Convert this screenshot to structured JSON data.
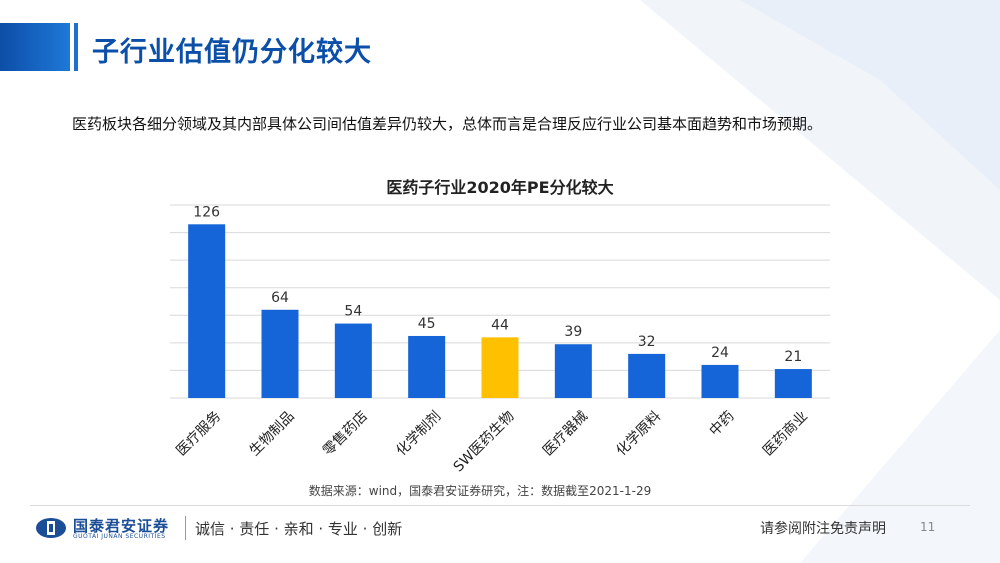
{
  "header": {
    "title": "子行业估值仍分化较大",
    "subtitle": "医药板块各细分领域及其内部具体公司间估值差异仍较大，总体而言是合理反应行业公司基本面趋势和市场预期。"
  },
  "chart_data": {
    "type": "bar",
    "title": "医药子行业2020年PE分化较大",
    "categories": [
      "医疗服务",
      "生物制品",
      "零售药店",
      "化学制剂",
      "SW医药生物",
      "医疗器械",
      "化学原料",
      "中药",
      "医药商业"
    ],
    "values": [
      126,
      64,
      54,
      45,
      44,
      39,
      32,
      24,
      21
    ],
    "data_labels": [
      "126",
      "64",
      "54",
      "45",
      "44",
      "39",
      "32",
      "24",
      "21"
    ],
    "highlight_index": 4,
    "colors": {
      "bar": "#1565d8",
      "highlight": "#ffc000",
      "grid": "#d9d9d9",
      "label": "#333333"
    },
    "ylim": [
      0,
      140
    ],
    "grid": true,
    "source": "数据来源：wind，国泰君安证券研究，注：数据截至2021-1-29"
  },
  "footer": {
    "logo_cn": "国泰君安证券",
    "logo_en": "GUOTAI JUNAN SECURITIES",
    "slogan": "诚信 · 责任 · 亲和 · 专业 · 创新",
    "disclaimer": "请参阅附注免责声明",
    "page_number": "11"
  },
  "accent_color": "#0b4fa8"
}
